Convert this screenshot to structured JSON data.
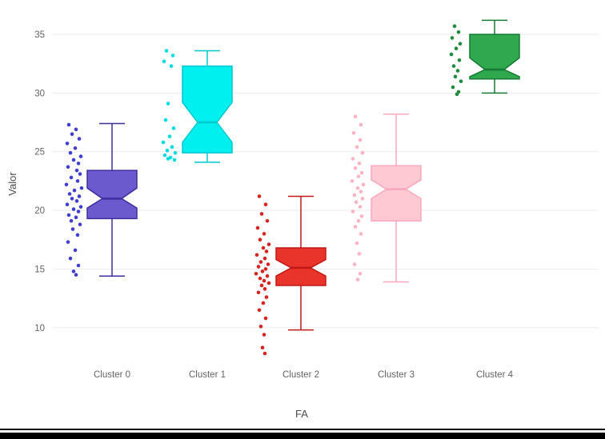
{
  "page": {
    "background": "#ffffff",
    "bottom_bar_color": "#000000"
  },
  "chart_data": {
    "type": "boxplot",
    "variant": "notched-box-with-all-points",
    "title": "",
    "xlabel": "FA",
    "ylabel": "Valor",
    "yticks": [
      10,
      15,
      20,
      25,
      30,
      35
    ],
    "ylim": [
      6.5,
      37
    ],
    "grid": "horizontal-light",
    "legend": "none",
    "categories": [
      "Cluster 0",
      "Cluster 1",
      "Cluster 2",
      "Cluster 3",
      "Cluster 4"
    ],
    "clusters": [
      {
        "name": "Cluster 0",
        "fill": "#6A5ACD",
        "line": "#3D2F9E",
        "point_color": "#3F3FD0",
        "stats": {
          "low": 14.4,
          "q1": 19.3,
          "median": 21.0,
          "q3": 23.4,
          "high": 27.4,
          "notch_low": 20.2,
          "notch_high": 21.9
        },
        "points": [
          [
            -8,
            27.3
          ],
          [
            1,
            26.9
          ],
          [
            -4,
            26.5
          ],
          [
            5,
            26.1
          ],
          [
            -10,
            25.7
          ],
          [
            0,
            25.3
          ],
          [
            -6,
            24.9
          ],
          [
            7,
            24.6
          ],
          [
            -2,
            24.3
          ],
          [
            4,
            24.0
          ],
          [
            -9,
            23.7
          ],
          [
            2,
            23.4
          ],
          [
            6,
            23.1
          ],
          [
            -5,
            22.8
          ],
          [
            3,
            22.5
          ],
          [
            -11,
            22.2
          ],
          [
            8,
            21.9
          ],
          [
            -1,
            21.7
          ],
          [
            -7,
            21.4
          ],
          [
            5,
            21.2
          ],
          [
            -4,
            21.0
          ],
          [
            2,
            20.8
          ],
          [
            -10,
            20.5
          ],
          [
            7,
            20.3
          ],
          [
            -2,
            20.1
          ],
          [
            4,
            19.9
          ],
          [
            -8,
            19.6
          ],
          [
            1,
            19.4
          ],
          [
            -5,
            19.1
          ],
          [
            6,
            18.8
          ],
          [
            -3,
            18.4
          ],
          [
            3,
            17.9
          ],
          [
            -9,
            17.3
          ],
          [
            0,
            16.6
          ],
          [
            -6,
            15.9
          ],
          [
            4,
            15.3
          ],
          [
            -2,
            14.8
          ],
          [
            1,
            14.5
          ]
        ]
      },
      {
        "name": "Cluster 1",
        "fill": "#00F0F0",
        "line": "#00C8CD",
        "point_color": "#00DCE4",
        "stats": {
          "low": 24.1,
          "q1": 24.9,
          "median": 27.5,
          "q3": 32.3,
          "high": 33.6,
          "notch_low": 25.8,
          "notch_high": 29.2
        },
        "points": [
          [
            -5,
            33.6
          ],
          [
            3,
            33.2
          ],
          [
            -8,
            32.7
          ],
          [
            1,
            32.3
          ],
          [
            -3,
            29.1
          ],
          [
            -6,
            27.7
          ],
          [
            4,
            27.0
          ],
          [
            -1,
            26.3
          ],
          [
            -9,
            25.8
          ],
          [
            2,
            25.4
          ],
          [
            -4,
            25.1
          ],
          [
            6,
            24.9
          ],
          [
            -7,
            24.7
          ],
          [
            0,
            24.5
          ],
          [
            -3,
            24.4
          ],
          [
            5,
            24.3
          ]
        ]
      },
      {
        "name": "Cluster 2",
        "fill": "#E8342A",
        "line": "#C01818",
        "point_color": "#D62420",
        "stats": {
          "low": 9.8,
          "q1": 13.6,
          "median": 15.1,
          "q3": 16.8,
          "high": 21.2,
          "notch_low": 14.4,
          "notch_high": 15.8
        },
        "points": [
          [
            -6,
            21.2
          ],
          [
            2,
            20.5
          ],
          [
            -3,
            19.7
          ],
          [
            4,
            19.1
          ],
          [
            -8,
            18.5
          ],
          [
            0,
            18.0
          ],
          [
            -5,
            17.5
          ],
          [
            6,
            17.1
          ],
          [
            -1,
            16.8
          ],
          [
            3,
            16.5
          ],
          [
            -9,
            16.2
          ],
          [
            1,
            15.9
          ],
          [
            -4,
            15.6
          ],
          [
            5,
            15.4
          ],
          [
            -7,
            15.2
          ],
          [
            2,
            15.0
          ],
          [
            -2,
            14.8
          ],
          [
            -10,
            14.6
          ],
          [
            4,
            14.4
          ],
          [
            -5,
            14.2
          ],
          [
            0,
            14.0
          ],
          [
            6,
            13.8
          ],
          [
            -3,
            13.6
          ],
          [
            1,
            13.3
          ],
          [
            -7,
            13.0
          ],
          [
            3,
            12.6
          ],
          [
            -1,
            12.1
          ],
          [
            -6,
            11.5
          ],
          [
            2,
            10.8
          ],
          [
            -4,
            10.1
          ],
          [
            0,
            9.4
          ],
          [
            -2,
            8.3
          ],
          [
            1,
            7.8
          ]
        ]
      },
      {
        "name": "Cluster 3",
        "fill": "#FFC9D4",
        "line": "#F8A8BC",
        "point_color": "#FFB3C2",
        "stats": {
          "low": 13.9,
          "q1": 19.1,
          "median": 21.8,
          "q3": 23.8,
          "high": 28.2,
          "notch_low": 21.0,
          "notch_high": 22.6
        },
        "points": [
          [
            -5,
            28.0
          ],
          [
            2,
            27.3
          ],
          [
            -7,
            26.6
          ],
          [
            1,
            26.0
          ],
          [
            -3,
            25.4
          ],
          [
            4,
            24.9
          ],
          [
            -8,
            24.4
          ],
          [
            0,
            24.0
          ],
          [
            -5,
            23.6
          ],
          [
            3,
            23.2
          ],
          [
            -1,
            22.9
          ],
          [
            -9,
            22.5
          ],
          [
            5,
            22.2
          ],
          [
            -2,
            21.9
          ],
          [
            2,
            21.6
          ],
          [
            -6,
            21.3
          ],
          [
            4,
            21.0
          ],
          [
            -4,
            20.7
          ],
          [
            1,
            20.3
          ],
          [
            -8,
            19.9
          ],
          [
            3,
            19.5
          ],
          [
            -1,
            19.1
          ],
          [
            -5,
            18.6
          ],
          [
            2,
            18.0
          ],
          [
            -3,
            17.2
          ],
          [
            0,
            16.3
          ],
          [
            -6,
            15.4
          ],
          [
            1,
            14.6
          ],
          [
            -2,
            14.1
          ]
        ]
      },
      {
        "name": "Cluster 4",
        "fill": "#2FA84F",
        "line": "#157A33",
        "point_color": "#1E8C3C",
        "stats": {
          "low": 30.0,
          "q1": 31.2,
          "median": 32.0,
          "q3": 35.0,
          "high": 36.2,
          "notch_low": 31.4,
          "notch_high": 33.0
        },
        "points": [
          [
            -4,
            35.7
          ],
          [
            1,
            35.2
          ],
          [
            -7,
            34.7
          ],
          [
            3,
            34.2
          ],
          [
            -2,
            33.8
          ],
          [
            -8,
            33.3
          ],
          [
            2,
            32.8
          ],
          [
            -5,
            32.3
          ],
          [
            0,
            31.9
          ],
          [
            -3,
            31.4
          ],
          [
            4,
            31.0
          ],
          [
            -6,
            30.5
          ],
          [
            1,
            30.1
          ],
          [
            -1,
            29.9
          ]
        ]
      }
    ]
  }
}
